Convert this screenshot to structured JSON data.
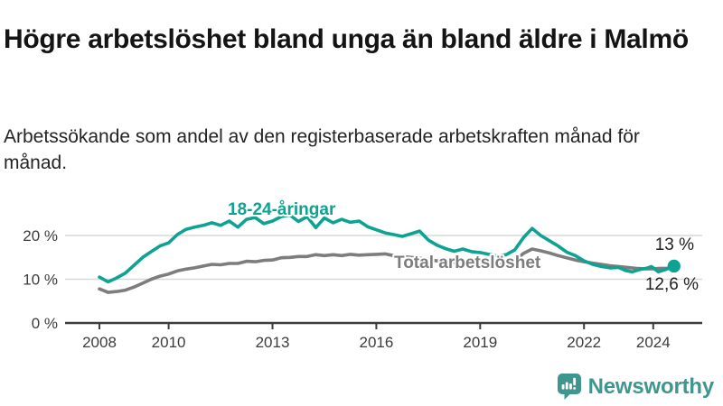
{
  "title": "Högre arbetslöshet bland unga än bland äldre i Malmö",
  "subtitle": "Arbetssökande som andel av den registerbaserade arbetskraften månad för månad.",
  "footer": {
    "brand": "Newsworthy"
  },
  "colors": {
    "youth_line": "#0ea293",
    "total_line": "#7d7d7d",
    "axis": "#3c3c3c",
    "grid": "#d8d8d8",
    "value_text": "#1f1f1f",
    "brand_teal": "#3e968f"
  },
  "chart_data": {
    "type": "line",
    "title": "Högre arbetslöshet bland unga än bland äldre i Malmö",
    "xlabel": "",
    "ylabel": "",
    "xlim": [
      2008,
      2024.6
    ],
    "ylim": [
      0,
      27
    ],
    "grid": "horizontal",
    "legend_position": "inline-labels",
    "x_ticks": [
      2008,
      2010,
      2013,
      2016,
      2019,
      2022,
      2024
    ],
    "x_tick_labels": [
      "2008",
      "2010",
      "2013",
      "2016",
      "2019",
      "2022",
      "2024"
    ],
    "y_ticks": [
      {
        "v": 0,
        "label": "0 %"
      },
      {
        "v": 10,
        "label": "10 %"
      },
      {
        "v": 20,
        "label": "20 %"
      }
    ],
    "end_values": {
      "youth": "13 %",
      "total": "12,6 %"
    },
    "series": [
      {
        "name": "18-24-åringar",
        "color": "#0ea293",
        "points": [
          [
            2008.0,
            10.5
          ],
          [
            2008.25,
            9.4
          ],
          [
            2008.5,
            10.3
          ],
          [
            2008.75,
            11.4
          ],
          [
            2009.0,
            13.2
          ],
          [
            2009.25,
            15.0
          ],
          [
            2009.5,
            16.3
          ],
          [
            2009.75,
            17.6
          ],
          [
            2010.0,
            18.3
          ],
          [
            2010.25,
            20.2
          ],
          [
            2010.5,
            21.4
          ],
          [
            2010.75,
            21.9
          ],
          [
            2011.0,
            22.3
          ],
          [
            2011.25,
            22.9
          ],
          [
            2011.5,
            22.3
          ],
          [
            2011.75,
            23.3
          ],
          [
            2012.0,
            21.9
          ],
          [
            2012.25,
            23.7
          ],
          [
            2012.5,
            24.1
          ],
          [
            2012.75,
            22.7
          ],
          [
            2013.0,
            23.3
          ],
          [
            2013.25,
            24.3
          ],
          [
            2013.5,
            24.7
          ],
          [
            2013.75,
            23.2
          ],
          [
            2014.0,
            24.3
          ],
          [
            2014.25,
            21.8
          ],
          [
            2014.5,
            24.0
          ],
          [
            2014.75,
            22.9
          ],
          [
            2015.0,
            23.7
          ],
          [
            2015.25,
            23.0
          ],
          [
            2015.5,
            23.3
          ],
          [
            2015.75,
            22.0
          ],
          [
            2016.0,
            21.3
          ],
          [
            2016.25,
            20.6
          ],
          [
            2016.5,
            20.2
          ],
          [
            2016.75,
            19.8
          ],
          [
            2017.0,
            20.4
          ],
          [
            2017.25,
            21.0
          ],
          [
            2017.5,
            19.0
          ],
          [
            2017.75,
            17.8
          ],
          [
            2018.0,
            17.0
          ],
          [
            2018.25,
            16.4
          ],
          [
            2018.5,
            16.9
          ],
          [
            2018.75,
            16.3
          ],
          [
            2019.0,
            16.1
          ],
          [
            2019.25,
            15.7
          ],
          [
            2019.5,
            15.3
          ],
          [
            2019.75,
            15.6
          ],
          [
            2020.0,
            16.7
          ],
          [
            2020.25,
            19.5
          ],
          [
            2020.5,
            21.6
          ],
          [
            2020.75,
            20.0
          ],
          [
            2021.0,
            18.8
          ],
          [
            2021.25,
            17.6
          ],
          [
            2021.5,
            16.2
          ],
          [
            2021.75,
            15.4
          ],
          [
            2022.0,
            14.2
          ],
          [
            2022.25,
            13.4
          ],
          [
            2022.5,
            12.9
          ],
          [
            2022.75,
            12.6
          ],
          [
            2023.0,
            12.7
          ],
          [
            2023.2,
            12.0
          ],
          [
            2023.4,
            11.7
          ],
          [
            2023.6,
            12.2
          ],
          [
            2023.8,
            12.5
          ],
          [
            2023.95,
            12.9
          ],
          [
            2024.15,
            11.7
          ],
          [
            2024.35,
            12.2
          ],
          [
            2024.6,
            13.0
          ]
        ]
      },
      {
        "name": "Total arbetslöshet",
        "color": "#7d7d7d",
        "points": [
          [
            2008.0,
            7.8
          ],
          [
            2008.25,
            7.0
          ],
          [
            2008.5,
            7.2
          ],
          [
            2008.75,
            7.5
          ],
          [
            2009.0,
            8.2
          ],
          [
            2009.25,
            9.1
          ],
          [
            2009.5,
            10.0
          ],
          [
            2009.75,
            10.7
          ],
          [
            2010.0,
            11.2
          ],
          [
            2010.25,
            11.9
          ],
          [
            2010.5,
            12.3
          ],
          [
            2010.75,
            12.6
          ],
          [
            2011.0,
            13.0
          ],
          [
            2011.25,
            13.4
          ],
          [
            2011.5,
            13.3
          ],
          [
            2011.75,
            13.6
          ],
          [
            2012.0,
            13.6
          ],
          [
            2012.25,
            14.1
          ],
          [
            2012.5,
            14.0
          ],
          [
            2012.75,
            14.3
          ],
          [
            2013.0,
            14.4
          ],
          [
            2013.25,
            14.9
          ],
          [
            2013.5,
            15.0
          ],
          [
            2013.75,
            15.2
          ],
          [
            2014.0,
            15.2
          ],
          [
            2014.25,
            15.6
          ],
          [
            2014.5,
            15.4
          ],
          [
            2014.75,
            15.6
          ],
          [
            2015.0,
            15.4
          ],
          [
            2015.25,
            15.7
          ],
          [
            2015.5,
            15.5
          ],
          [
            2015.75,
            15.6
          ],
          [
            2016.0,
            15.7
          ],
          [
            2016.25,
            15.8
          ],
          [
            2016.5,
            15.4
          ],
          [
            2016.75,
            15.2
          ],
          [
            2017.0,
            15.0
          ],
          [
            2017.25,
            14.8
          ],
          [
            2017.5,
            14.5
          ],
          [
            2017.75,
            14.2
          ],
          [
            2018.0,
            14.0
          ],
          [
            2018.25,
            13.9
          ],
          [
            2018.5,
            13.7
          ],
          [
            2018.75,
            13.6
          ],
          [
            2019.0,
            13.5
          ],
          [
            2019.25,
            13.4
          ],
          [
            2019.5,
            13.3
          ],
          [
            2019.75,
            13.6
          ],
          [
            2020.0,
            14.2
          ],
          [
            2020.25,
            15.9
          ],
          [
            2020.5,
            16.9
          ],
          [
            2020.75,
            16.5
          ],
          [
            2021.0,
            16.0
          ],
          [
            2021.25,
            15.4
          ],
          [
            2021.5,
            14.9
          ],
          [
            2021.75,
            14.4
          ],
          [
            2022.0,
            14.0
          ],
          [
            2022.25,
            13.7
          ],
          [
            2022.5,
            13.4
          ],
          [
            2022.75,
            13.1
          ],
          [
            2023.0,
            12.9
          ],
          [
            2023.25,
            12.7
          ],
          [
            2023.5,
            12.5
          ],
          [
            2023.75,
            12.4
          ],
          [
            2024.0,
            12.4
          ],
          [
            2024.2,
            12.5
          ],
          [
            2024.4,
            12.5
          ],
          [
            2024.6,
            12.6
          ]
        ]
      }
    ]
  }
}
